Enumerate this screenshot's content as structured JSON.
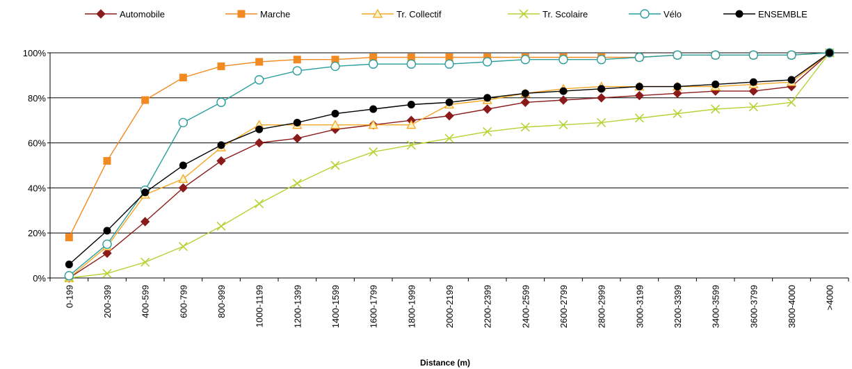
{
  "chart_data": {
    "type": "line",
    "xlabel": "Distance (m)",
    "ylabel": "",
    "ylim": [
      0,
      100
    ],
    "yticks": [
      "0%",
      "20%",
      "40%",
      "60%",
      "80%",
      "100%"
    ],
    "grid": "horizontal",
    "legend_position": "top",
    "categories": [
      "0-199",
      "200-399",
      "400-599",
      "600-799",
      "800-999",
      "1000-1199",
      "1200-1399",
      "1400-1599",
      "1600-1799",
      "1800-1999",
      "2000-2199",
      "2200-2399",
      "2400-2599",
      "2600-2799",
      "2800-2999",
      "3000-3199",
      "3200-3399",
      "3400-3599",
      "3600-3799",
      "3800-4000",
      ">4000"
    ],
    "series": [
      {
        "name": "Automobile",
        "color": "#8b1a1a",
        "marker": "diamond",
        "values": [
          0,
          11,
          25,
          40,
          52,
          60,
          62,
          66,
          68,
          70,
          72,
          75,
          78,
          79,
          80,
          81,
          82,
          83,
          83,
          85,
          100
        ]
      },
      {
        "name": "Marche",
        "color": "#f28a22",
        "marker": "square",
        "values": [
          18,
          52,
          79,
          89,
          94,
          96,
          97,
          97,
          98,
          98,
          98,
          98,
          98,
          98,
          98,
          98,
          99,
          99,
          99,
          99,
          100
        ]
      },
      {
        "name": "Tr. Collectif",
        "color": "#f5a623",
        "marker": "triangle",
        "values": [
          0,
          14,
          37,
          44,
          58,
          68,
          68,
          68,
          68,
          68,
          77,
          79,
          82,
          84,
          85,
          85,
          85,
          85,
          86,
          87,
          100
        ]
      },
      {
        "name": "Tr. Scolaire",
        "color": "#b5d334",
        "marker": "x",
        "values": [
          0,
          2,
          7,
          14,
          23,
          33,
          42,
          50,
          56,
          59,
          62,
          65,
          67,
          68,
          69,
          71,
          73,
          75,
          76,
          78,
          100
        ]
      },
      {
        "name": "Vélo",
        "color": "#2a9d9d",
        "marker": "circle-open",
        "values": [
          1,
          15,
          39,
          69,
          78,
          88,
          92,
          94,
          95,
          95,
          95,
          96,
          97,
          97,
          97,
          98,
          99,
          99,
          99,
          99,
          100
        ]
      },
      {
        "name": "ENSEMBLE",
        "color": "#000000",
        "marker": "circle",
        "values": [
          6,
          21,
          38,
          50,
          59,
          66,
          69,
          73,
          75,
          77,
          78,
          80,
          82,
          83,
          84,
          85,
          85,
          86,
          87,
          88,
          100
        ]
      }
    ]
  }
}
